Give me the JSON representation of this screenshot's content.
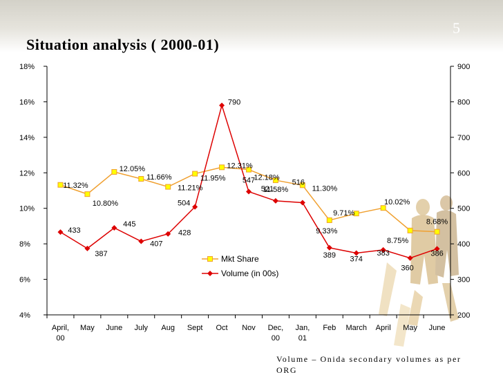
{
  "slide": {
    "number": "5",
    "title": "Situation analysis ( 2000-01)",
    "footnote": "Volume – Onida secondary volumes as per ORG"
  },
  "colors": {
    "mkt_share": "#f0a030",
    "mkt_share_marker": "#ffff00",
    "volume": "#dd0000",
    "axis": "#000000"
  },
  "chart_data": {
    "type": "line",
    "categories": [
      "April, 00",
      "May",
      "June",
      "July",
      "Aug",
      "Sept",
      "Oct",
      "Nov",
      "Dec, 00",
      "Jan, 01",
      "Feb",
      "March",
      "April",
      "May",
      "June"
    ],
    "series": [
      {
        "name": "Mkt Share",
        "axis": "left",
        "values": [
          11.32,
          10.8,
          12.05,
          11.66,
          11.21,
          11.95,
          12.31,
          12.18,
          11.58,
          11.3,
          9.33,
          9.71,
          10.02,
          8.75,
          8.68
        ],
        "labels": [
          "11.32%",
          "10.80%",
          "12.05%",
          "11.66%",
          "11.21%",
          "11.95%",
          "12.31%",
          "12.18%",
          "11.58%",
          "11.30%",
          "9.33%",
          "9.71%",
          "10.02%",
          "8.75%",
          "8.68%"
        ]
      },
      {
        "name": "Volume (in 00s)",
        "axis": "right",
        "values": [
          433,
          387,
          445,
          407,
          428,
          504,
          790,
          547,
          521,
          516,
          389,
          374,
          383,
          360,
          386
        ],
        "labels": [
          "433",
          "387",
          "445",
          "407",
          "428",
          "504",
          "790",
          "547",
          "521",
          "516",
          "389",
          "374",
          "383",
          "360",
          "386"
        ]
      }
    ],
    "y_left": {
      "min": 4,
      "max": 18,
      "ticks": [
        4,
        6,
        8,
        10,
        12,
        14,
        16,
        18
      ],
      "tick_labels": [
        "4%",
        "6%",
        "8%",
        "10%",
        "12%",
        "14%",
        "16%",
        "18%"
      ]
    },
    "y_right": {
      "min": 200,
      "max": 900,
      "ticks": [
        200,
        300,
        400,
        500,
        600,
        700,
        800,
        900
      ],
      "tick_labels": [
        "200",
        "300",
        "400",
        "500",
        "600",
        "700",
        "800",
        "900"
      ]
    },
    "legend": {
      "placement": "center-right of plot area",
      "entries": [
        "Mkt Share",
        "Volume (in 00s)"
      ]
    },
    "grid": false
  }
}
